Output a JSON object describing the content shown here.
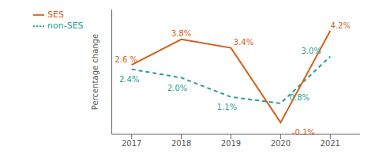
{
  "chart_data": {
    "type": "line",
    "x": [
      2017,
      2018,
      2019,
      2020,
      2021
    ],
    "xlim": [
      2016.6,
      2021.6
    ],
    "xticks": [
      2017,
      2018,
      2019,
      2020,
      2021
    ],
    "ylim": [
      -0.65,
      5.2
    ],
    "ylabel": "Percentage change",
    "tick_labels": "x",
    "grid": false,
    "legend": "upper left",
    "data_labels": true,
    "series": [
      {
        "name": "non-SES",
        "color": "#2a9d8f",
        "line_style": "dashed",
        "values": [
          2.4,
          2.0,
          1.1,
          0.8,
          3.0
        ],
        "value_labels": [
          "2.4%",
          "2.0%",
          "1.1%",
          "0.8%",
          "3.0%"
        ]
      },
      {
        "name": "SES",
        "color": "#d4601a",
        "line_style": "solid",
        "values": [
          2.6,
          3.8,
          3.4,
          -0.1,
          4.2
        ],
        "value_labels": [
          "2.6 %",
          "3.8%",
          "3.4%",
          "-0.1%",
          "4.2%"
        ]
      }
    ]
  }
}
